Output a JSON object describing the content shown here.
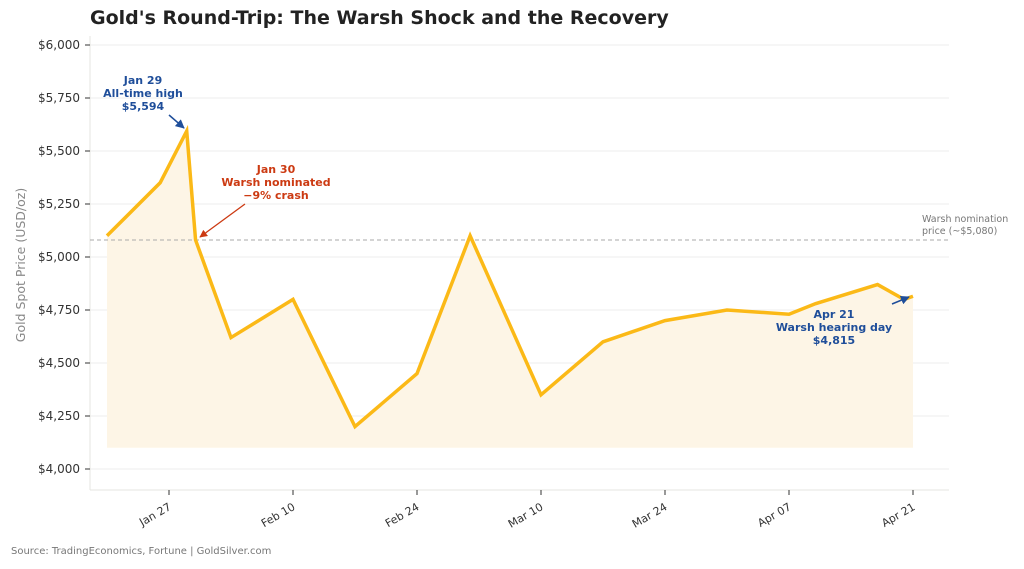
{
  "title": "Gold's Round-Trip: The Warsh Shock and the Recovery",
  "source": "Source: TradingEconomics, Fortune | GoldSilver.com",
  "colors": {
    "line": "#fbb917",
    "fill": "#fdf5e6",
    "annotation_blue": "#1f4e9a",
    "annotation_red": "#cc3a12",
    "reference_line": "#aaaaaa",
    "grid": "#eeeeee"
  },
  "chart_data": {
    "type": "line",
    "title": "Gold's Round-Trip: The Warsh Shock and the Recovery",
    "xlabel": "",
    "ylabel": "Gold Spot Price (USD/oz)",
    "ylim": [
      4000,
      6000
    ],
    "yticks": [
      "$4,000",
      "$4,250",
      "$4,500",
      "$4,750",
      "$5,000",
      "$5,250",
      "$5,500",
      "$5,750",
      "$6,000"
    ],
    "xticks": [
      "Jan 27",
      "Feb 10",
      "Feb 24",
      "Mar 10",
      "Mar 24",
      "Apr 07",
      "Apr 21"
    ],
    "grid": true,
    "series": [
      {
        "name": "Gold Spot Price",
        "x": [
          "Jan 20",
          "Jan 26",
          "Jan 29",
          "Jan 30",
          "Feb 03",
          "Feb 10",
          "Feb 17",
          "Feb 24",
          "Mar 02",
          "Mar 10",
          "Mar 17",
          "Mar 24",
          "Mar 31",
          "Apr 07",
          "Apr 10",
          "Apr 17",
          "Apr 20",
          "Apr 21"
        ],
        "values": [
          5100,
          5350,
          5594,
          5080,
          4620,
          4800,
          4200,
          4450,
          5100,
          4350,
          4600,
          4700,
          4750,
          4730,
          4780,
          4870,
          4800,
          4815
        ]
      }
    ],
    "reference_lines": [
      {
        "y": 5080,
        "label_line1": "Warsh nomination",
        "label_line2": "price (~$5,080)"
      }
    ],
    "annotations": [
      {
        "lines": [
          "Jan 29",
          "All-time high",
          "$5,594"
        ],
        "x": "Jan 29",
        "y": 5594,
        "color": "blue"
      },
      {
        "lines": [
          "Jan 30",
          "Warsh nominated",
          "−9% crash"
        ],
        "x": "Jan 30",
        "y": 5080,
        "color": "red"
      },
      {
        "lines": [
          "Apr 21",
          "Warsh hearing day",
          "$4,815"
        ],
        "x": "Apr 21",
        "y": 4815,
        "color": "blue"
      }
    ]
  }
}
